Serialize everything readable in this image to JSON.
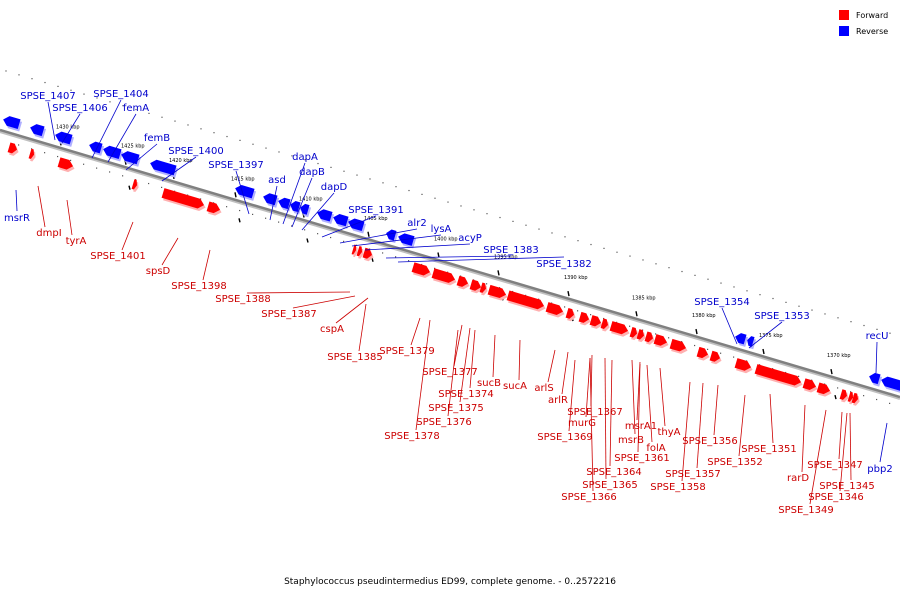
{
  "legend": [
    {
      "label": "Forward",
      "color": "#ff0000"
    },
    {
      "label": "Reverse",
      "color": "#0000ff"
    }
  ],
  "caption": "Staphylococcus pseudintermedius ED99, complete genome. - 0..2572216",
  "colors": {
    "forward": "#ff0000",
    "reverse": "#0000ff",
    "forward_label": "#cc0000",
    "reverse_label": "#0000cc",
    "backbone": "#808080"
  },
  "scale_labels": [
    "1430 kbp",
    "1425 kbp",
    "1420 kbp",
    "1415 kbp",
    "1410 kbp",
    "1405 kbp",
    "1400 kbp",
    "1395 kbp",
    "1390 kbp",
    "1385 kbp",
    "1380 kbp",
    "1375 kbp",
    "1370 kbp"
  ],
  "reverse_labels": [
    "SPSE_1407",
    "SPSE_1406",
    "SPSE_1404",
    "femA",
    "femB",
    "SPSE_1400",
    "SPSE_1397",
    "asd",
    "dapA",
    "dapB",
    "dapD",
    "SPSE_1391",
    "alr2",
    "lysA",
    "acyP",
    "SPSE_1383",
    "SPSE_1382",
    "SPSE_1354",
    "SPSE_1353",
    "recU",
    "msrR",
    "pbp2"
  ],
  "forward_labels": [
    "dmpI",
    "tyrA",
    "SPSE_1401",
    "spsD",
    "SPSE_1398",
    "SPSE_1388",
    "SPSE_1387",
    "cspA",
    "SPSE_1385",
    "SPSE_1379",
    "SPSE_1377",
    "SPSE_1374",
    "sucB",
    "sucA",
    "arlS",
    "arlR",
    "SPSE_1375",
    "SPSE_1376",
    "SPSE_1378",
    "SPSE_1367",
    "murG",
    "SPSE_1369",
    "msrA1",
    "msrB",
    "folA",
    "thyA",
    "SPSE_1361",
    "SPSE_1364",
    "SPSE_1365",
    "SPSE_1366",
    "SPSE_1356",
    "SPSE_1357",
    "SPSE_1358",
    "SPSE_1352",
    "SPSE_1351",
    "rarD",
    "SPSE_1347",
    "SPSE_1345",
    "SPSE_1346",
    "SPSE_1349"
  ]
}
